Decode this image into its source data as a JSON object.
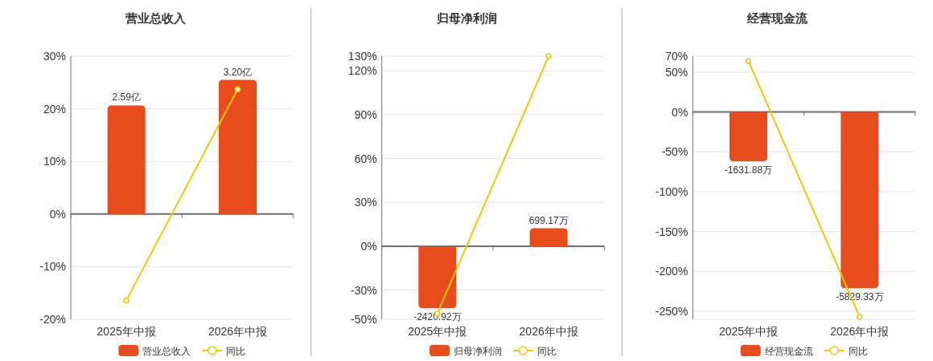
{
  "chart_data": [
    {
      "type": "bar",
      "title": "营业总收入",
      "categories": [
        "2025年中报",
        "2026年中报"
      ],
      "series": [
        {
          "name": "营业总收入",
          "axis": "y2",
          "color": "#e84c1c",
          "values": [
            2.59,
            3.2
          ],
          "value_labels": [
            "2.59亿",
            "3.20亿"
          ]
        },
        {
          "name": "同比",
          "type": "line",
          "color": "#f0c808",
          "values": [
            -16.4,
            23.7
          ]
        }
      ],
      "ylim": [
        -20,
        30
      ],
      "yticks": [
        {
          "value": -20,
          "label": "-20%"
        },
        {
          "value": -10,
          "label": "-10%"
        },
        {
          "value": 0,
          "label": "0%"
        },
        {
          "value": 10,
          "label": "10%"
        },
        {
          "value": 20,
          "label": "20%"
        },
        {
          "value": 30,
          "label": "30%"
        }
      ],
      "grid": "y",
      "legend": "bottom",
      "marker": "circle"
    },
    {
      "type": "bar",
      "title": "归母净利润",
      "categories": [
        "2025年中报",
        "2026年中报"
      ],
      "series": [
        {
          "name": "归母净利润",
          "axis": "y2",
          "color": "#e84c1c",
          "values": [
            -2420.92,
            699.17
          ],
          "value_labels": [
            "-2420.92万",
            "699.17万"
          ]
        },
        {
          "name": "同比",
          "type": "line",
          "color": "#f0c808",
          "values": [
            -46,
            130
          ]
        }
      ],
      "ylim": [
        -50,
        130
      ],
      "yticks": [
        {
          "value": -50,
          "label": "-50%"
        },
        {
          "value": -30,
          "label": "-30%"
        },
        {
          "value": 0,
          "label": "0%"
        },
        {
          "value": 30,
          "label": "30%"
        },
        {
          "value": 60,
          "label": "60%"
        },
        {
          "value": 90,
          "label": "90%"
        },
        {
          "value": 120,
          "label": "120%"
        },
        {
          "value": 130,
          "label": "130%"
        }
      ],
      "grid": "y",
      "legend": "bottom",
      "marker": "circle"
    },
    {
      "type": "bar",
      "title": "经营现金流",
      "categories": [
        "2025年中报",
        "2026年中报"
      ],
      "series": [
        {
          "name": "经营现金流",
          "axis": "y2",
          "color": "#e84c1c",
          "values": [
            -1631.88,
            -5829.33
          ],
          "value_labels": [
            "-1631.88万",
            "-5829.33万"
          ]
        },
        {
          "name": "同比",
          "type": "line",
          "color": "#f0c808",
          "values": [
            64,
            -257
          ]
        }
      ],
      "ylim": [
        -260,
        70
      ],
      "yticks": [
        {
          "value": -260,
          "label": null
        },
        {
          "value": -250,
          "label": "-250%"
        },
        {
          "value": -200,
          "label": "-200%"
        },
        {
          "value": -150,
          "label": "-150%"
        },
        {
          "value": -100,
          "label": "-100%"
        },
        {
          "value": -50,
          "label": "-50%"
        },
        {
          "value": 0,
          "label": "0%"
        },
        {
          "value": 50,
          "label": "50%"
        },
        {
          "value": 70,
          "label": "70%"
        }
      ],
      "grid": "y",
      "legend": "bottom",
      "marker": "circle"
    }
  ]
}
